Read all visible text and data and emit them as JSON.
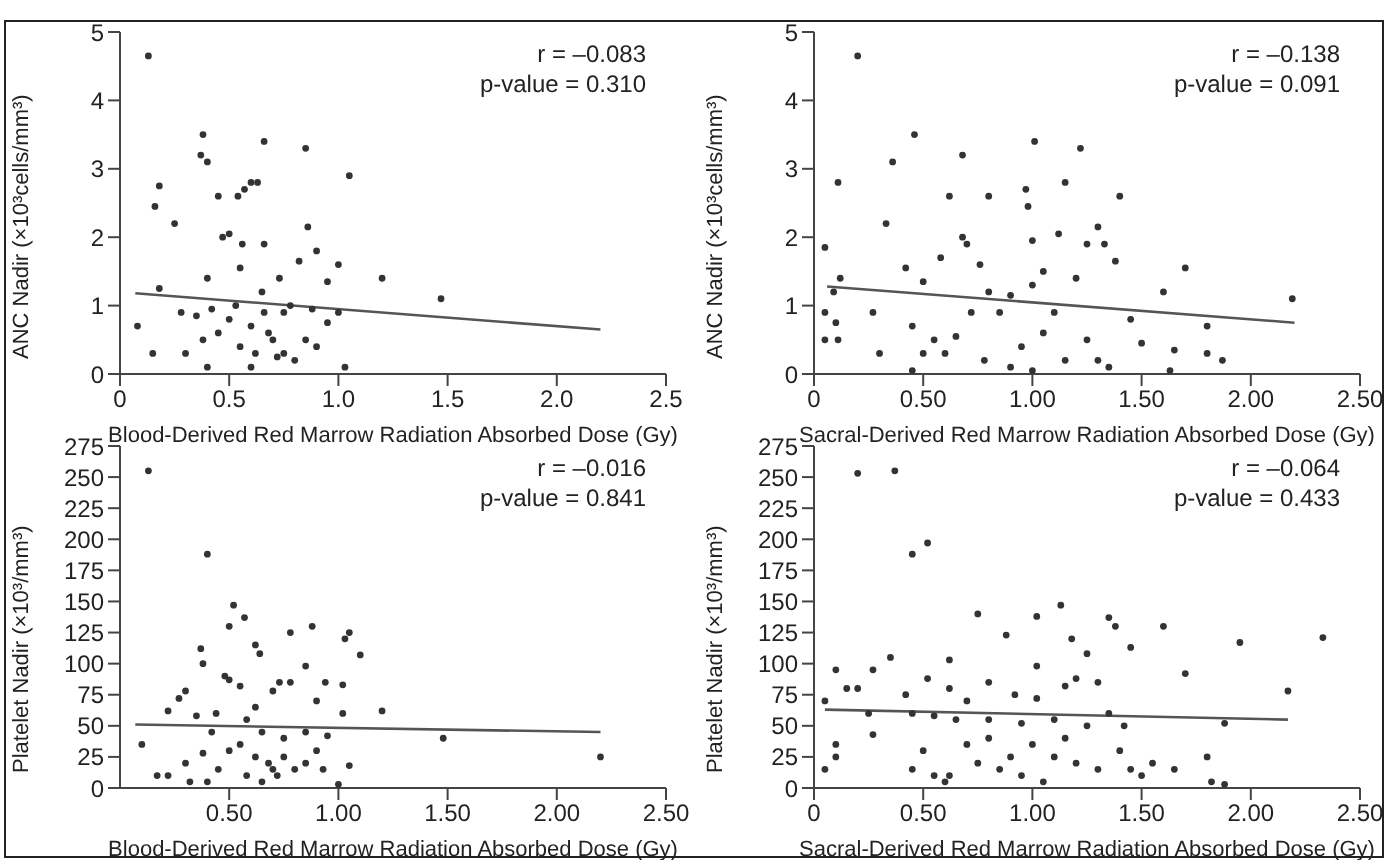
{
  "chart_data": [
    {
      "type": "scatter",
      "xlabel": "Blood-Derived Red Marrow Radiation Absorbed Dose (Gy)",
      "ylabel": "ANC Nadir (×10³cells/mm³)",
      "xlim": [
        0,
        2.5
      ],
      "xticks": [
        0,
        0.5,
        {
          "value": 1,
          "label": "1.0"
        },
        1.5,
        {
          "value": 2,
          "label": "2.0"
        },
        2.5
      ],
      "ylim": [
        0,
        5
      ],
      "yticks": [
        0,
        1,
        2,
        3,
        4,
        5
      ],
      "annotations": [
        "r = –0.083",
        "p-value = 0.310"
      ],
      "series": [
        {
          "color": "#333333",
          "x": [
            0.13,
            0.38,
            0.4,
            0.37,
            0.66,
            0.85,
            1.05,
            0.18,
            0.16,
            0.25,
            0.45,
            0.54,
            0.57,
            0.6,
            0.63,
            0.47,
            0.5,
            0.56,
            0.66,
            0.86,
            0.9,
            0.82,
            0.95,
            1.0,
            1.2,
            1.47,
            0.73,
            0.55,
            0.4,
            0.18,
            0.28,
            0.35,
            0.3,
            0.38,
            0.45,
            0.5,
            0.55,
            0.6,
            0.62,
            0.66,
            0.7,
            0.72,
            0.75,
            0.8,
            0.85,
            0.9,
            0.95,
            1.0,
            1.03,
            0.08,
            0.15,
            0.4,
            0.53,
            0.65,
            0.78,
            0.88,
            0.42,
            0.6,
            0.68,
            0.75
          ],
          "values": [
            4.65,
            3.5,
            3.1,
            3.2,
            3.4,
            3.3,
            2.9,
            2.75,
            2.45,
            2.2,
            2.6,
            2.6,
            2.7,
            2.8,
            2.8,
            2.0,
            2.05,
            1.9,
            1.9,
            2.15,
            1.8,
            1.65,
            1.35,
            1.6,
            1.4,
            1.1,
            1.4,
            1.55,
            1.4,
            1.25,
            0.9,
            0.85,
            0.3,
            0.5,
            0.6,
            0.8,
            0.4,
            0.7,
            0.3,
            0.9,
            0.5,
            0.25,
            0.9,
            0.2,
            0.5,
            0.4,
            0.75,
            0.9,
            0.1,
            0.7,
            0.3,
            0.1,
            1.0,
            1.2,
            1.0,
            0.95,
            0.95,
            0.1,
            0.6,
            0.3
          ]
        },
        {
          "type": "line",
          "color": "#555555",
          "x": [
            0.07,
            2.2
          ],
          "values": [
            1.18,
            0.65
          ]
        }
      ]
    },
    {
      "type": "scatter",
      "xlabel": "Sacral-Derived Red Marrow Radiation Absorbed Dose (Gy)",
      "ylabel": "ANC Nadir (×10³cells/mm³)",
      "xlim": [
        0,
        2.5
      ],
      "xticks": [
        0,
        {
          "value": 0.5,
          "label": "0.50"
        },
        {
          "value": 1,
          "label": "1.00"
        },
        {
          "value": 1.5,
          "label": "1.50"
        },
        {
          "value": 2,
          "label": "2.00"
        },
        {
          "value": 2.5,
          "label": "2.50"
        }
      ],
      "ylim": [
        0,
        5
      ],
      "yticks": [
        0,
        1,
        2,
        3,
        4,
        5
      ],
      "annotations": [
        "r = –0.138",
        "p-value = 0.091"
      ],
      "series": [
        {
          "color": "#333333",
          "x": [
            0.2,
            0.11,
            0.36,
            0.46,
            0.68,
            1.01,
            1.22,
            0.33,
            0.62,
            0.8,
            0.97,
            0.98,
            1.15,
            1.4,
            0.05,
            0.68,
            0.7,
            1.0,
            1.12,
            1.3,
            1.33,
            1.25,
            0.42,
            0.58,
            0.76,
            1.05,
            1.38,
            1.6,
            1.7,
            0.12,
            0.09,
            0.5,
            0.8,
            0.9,
            1.0,
            1.2,
            2.19,
            0.05,
            0.1,
            0.05,
            0.11,
            0.27,
            0.3,
            0.45,
            0.5,
            0.55,
            0.6,
            0.65,
            0.72,
            0.78,
            0.85,
            0.9,
            0.95,
            1.05,
            1.1,
            1.15,
            1.25,
            1.3,
            1.35,
            1.45,
            1.5,
            1.65,
            1.8,
            1.87,
            1.8,
            1.63,
            0.45,
            1.0
          ],
          "values": [
            4.65,
            2.8,
            3.1,
            3.5,
            3.2,
            3.4,
            3.3,
            2.2,
            2.6,
            2.6,
            2.7,
            2.45,
            2.8,
            2.6,
            1.85,
            2.0,
            1.9,
            1.95,
            2.05,
            2.15,
            1.9,
            1.9,
            1.55,
            1.7,
            1.6,
            1.5,
            1.65,
            1.2,
            1.55,
            1.4,
            1.2,
            1.35,
            1.2,
            1.15,
            1.3,
            1.4,
            1.1,
            0.9,
            0.75,
            0.5,
            0.5,
            0.9,
            0.3,
            0.7,
            0.3,
            0.5,
            0.3,
            0.55,
            0.9,
            0.2,
            0.9,
            0.1,
            0.4,
            0.6,
            0.9,
            0.2,
            0.5,
            0.2,
            0.1,
            0.8,
            0.45,
            0.35,
            0.3,
            0.2,
            0.7,
            0.05,
            0.05,
            0.05
          ]
        },
        {
          "type": "line",
          "color": "#555555",
          "x": [
            0.06,
            2.2
          ],
          "values": [
            1.28,
            0.75
          ]
        }
      ]
    },
    {
      "type": "scatter",
      "xlabel": "Blood-Derived Red Marrow Radiation Absorbed Dose (Gy)",
      "ylabel": "Platelet Nadir (×10³/mm³)",
      "xlim": [
        0,
        2.5
      ],
      "xticks": [
        {
          "value": 0.5,
          "label": "0.50"
        },
        {
          "value": 1,
          "label": "1.00"
        },
        {
          "value": 1.5,
          "label": "1.50"
        },
        {
          "value": 2,
          "label": "2.00"
        },
        {
          "value": 2.5,
          "label": "2.50"
        }
      ],
      "ylim": [
        0,
        275
      ],
      "yticks": [
        0,
        25,
        50,
        75,
        100,
        125,
        150,
        175,
        200,
        225,
        250,
        275
      ],
      "annotations": [
        "r = –0.016",
        "p-value = 0.841"
      ],
      "series": [
        {
          "color": "#333333",
          "x": [
            0.13,
            0.4,
            0.52,
            0.57,
            0.5,
            0.37,
            0.62,
            0.64,
            0.78,
            0.88,
            1.05,
            1.03,
            1.1,
            0.38,
            0.48,
            0.5,
            0.73,
            0.78,
            0.85,
            0.94,
            1.02,
            0.27,
            0.3,
            0.44,
            0.55,
            0.62,
            0.7,
            0.9,
            1.2,
            1.02,
            0.22,
            0.35,
            0.42,
            0.58,
            0.65,
            0.75,
            0.85,
            0.95,
            1.48,
            2.2,
            0.1,
            0.17,
            0.22,
            0.3,
            0.32,
            0.38,
            0.45,
            0.5,
            0.55,
            0.58,
            0.62,
            0.65,
            0.68,
            0.7,
            0.72,
            0.75,
            0.8,
            0.85,
            0.9,
            0.93,
            1.0,
            1.05,
            0.4
          ],
          "values": [
            255,
            188,
            147,
            137,
            130,
            112,
            115,
            108,
            125,
            130,
            125,
            120,
            107,
            100,
            90,
            87,
            85,
            85,
            98,
            85,
            83,
            72,
            78,
            60,
            82,
            65,
            78,
            70,
            62,
            60,
            62,
            58,
            45,
            55,
            45,
            40,
            45,
            42,
            40,
            25,
            35,
            10,
            10,
            20,
            5,
            28,
            15,
            30,
            35,
            10,
            25,
            5,
            20,
            15,
            10,
            25,
            15,
            20,
            30,
            15,
            3,
            18,
            5
          ]
        },
        {
          "type": "line",
          "color": "#555555",
          "x": [
            0.07,
            2.2
          ],
          "values": [
            51,
            45
          ]
        }
      ]
    },
    {
      "type": "scatter",
      "xlabel": "Sacral-Derived Red Marrow Radiation Absorbed Dose (Gy)",
      "ylabel": "Platelet Nadir (×10³/mm³)",
      "xlim": [
        0,
        2.5
      ],
      "xticks": [
        0,
        {
          "value": 0.5,
          "label": "0.50"
        },
        {
          "value": 1,
          "label": "1.00"
        },
        {
          "value": 1.5,
          "label": "1.50"
        },
        {
          "value": 2,
          "label": "2.00"
        },
        {
          "value": 2.5,
          "label": "2.50"
        }
      ],
      "ylim": [
        0,
        275
      ],
      "yticks": [
        0,
        25,
        50,
        75,
        100,
        125,
        150,
        175,
        200,
        225,
        250,
        275
      ],
      "annotations": [
        "r = –0.064",
        "p-value = 0.433"
      ],
      "series": [
        {
          "color": "#333333",
          "x": [
            0.2,
            0.37,
            0.45,
            0.52,
            0.75,
            1.02,
            1.13,
            1.35,
            1.38,
            1.6,
            1.95,
            0.88,
            1.18,
            1.25,
            1.45,
            0.35,
            0.62,
            1.02,
            1.7,
            0.1,
            0.27,
            0.52,
            0.8,
            1.2,
            1.3,
            0.15,
            0.2,
            0.42,
            0.62,
            1.15,
            2.17,
            0.05,
            0.7,
            0.92,
            1.02,
            0.25,
            0.45,
            0.55,
            0.65,
            0.8,
            0.95,
            1.1,
            1.25,
            1.35,
            1.42,
            1.88,
            0.05,
            0.1,
            0.1,
            0.27,
            0.45,
            0.5,
            0.55,
            0.6,
            0.62,
            0.7,
            0.75,
            0.8,
            0.85,
            0.9,
            0.95,
            1.0,
            1.05,
            1.1,
            1.15,
            1.2,
            1.3,
            1.4,
            1.45,
            1.5,
            1.55,
            1.65,
            1.8,
            1.82,
            1.88,
            2.33
          ],
          "values": [
            253,
            255,
            188,
            197,
            140,
            138,
            147,
            137,
            130,
            130,
            117,
            123,
            120,
            108,
            113,
            105,
            103,
            98,
            92,
            95,
            95,
            88,
            85,
            88,
            85,
            80,
            80,
            75,
            80,
            82,
            78,
            70,
            70,
            75,
            72,
            60,
            60,
            58,
            55,
            55,
            52,
            55,
            50,
            60,
            50,
            52,
            15,
            35,
            25,
            43,
            15,
            30,
            10,
            5,
            10,
            35,
            20,
            40,
            15,
            25,
            10,
            35,
            5,
            25,
            40,
            20,
            15,
            30,
            15,
            10,
            20,
            15,
            25,
            5,
            3,
            121
          ]
        },
        {
          "type": "line",
          "color": "#555555",
          "x": [
            0.05,
            2.17
          ],
          "values": [
            63,
            55
          ]
        }
      ]
    }
  ]
}
